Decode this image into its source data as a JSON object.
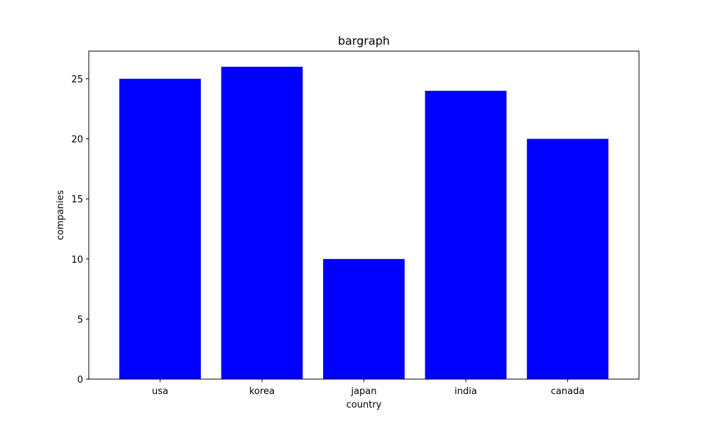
{
  "chart_data": {
    "type": "bar",
    "title": "bargraph",
    "xlabel": "country",
    "ylabel": "companies",
    "categories": [
      "usa",
      "korea",
      "japan",
      "india",
      "canada"
    ],
    "values": [
      25,
      26,
      10,
      24,
      20
    ],
    "ylim": [
      0,
      27.3
    ],
    "yticks": [
      0,
      5,
      10,
      15,
      20,
      25
    ],
    "grid": false,
    "bar_color": "#0000ff",
    "axis_color": "#000000"
  }
}
